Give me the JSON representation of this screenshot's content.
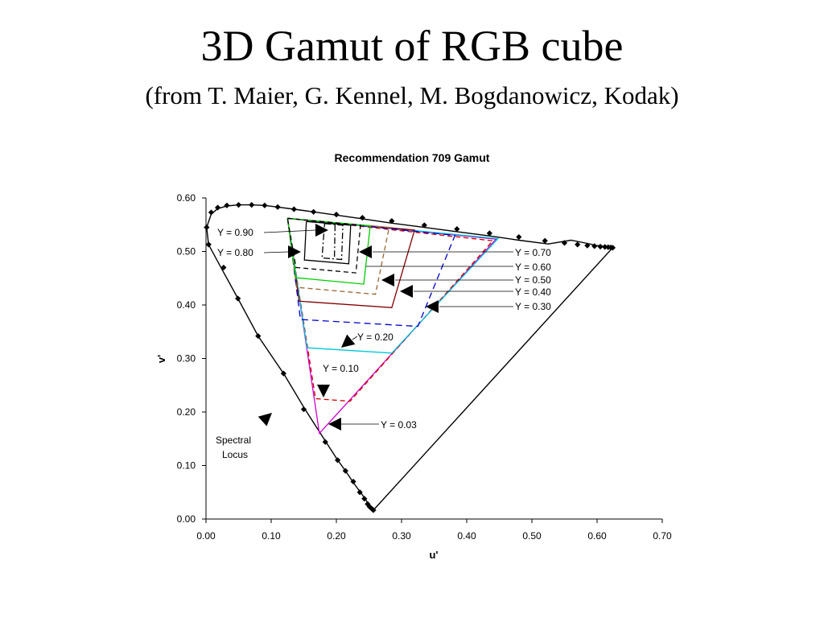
{
  "slide": {
    "title": "3D Gamut of RGB cube",
    "subtitle": "(from T. Maier, G. Kennel, M. Bogdanowicz, Kodak)"
  },
  "chart_data": {
    "type": "line",
    "title": "Recommendation 709 Gamut",
    "xlabel": "u'",
    "ylabel": "v'",
    "xlim": [
      0,
      0.7
    ],
    "ylim": [
      0,
      0.6
    ],
    "x_ticks": [
      0,
      0.1,
      0.2,
      0.3,
      0.4,
      0.5,
      0.6,
      0.7
    ],
    "y_ticks": [
      0,
      0.1,
      0.2,
      0.3,
      0.4,
      0.5,
      0.6
    ],
    "x_tick_labels": [
      "0.00",
      "0.10",
      "0.20",
      "0.30",
      "0.40",
      "0.50",
      "0.60",
      "0.70"
    ],
    "y_tick_labels": [
      "0.00",
      "0.10",
      "0.20",
      "0.30",
      "0.40",
      "0.50",
      "0.60"
    ],
    "grid": false,
    "legend": "none",
    "series": [
      {
        "label_key": "spectral",
        "color": "#000000",
        "dash": "solid",
        "markers": true,
        "closed": true,
        "points": [
          [
            0.2568,
            0.0165
          ],
          [
            0.2555,
            0.0175
          ],
          [
            0.253,
            0.02
          ],
          [
            0.25,
            0.026
          ],
          [
            0.2455,
            0.035
          ],
          [
            0.24,
            0.045
          ],
          [
            0.232,
            0.058
          ],
          [
            0.224,
            0.072
          ],
          [
            0.214,
            0.09
          ],
          [
            0.201,
            0.112
          ],
          [
            0.182,
            0.148
          ],
          [
            0.152,
            0.205
          ],
          [
            0.12,
            0.27
          ],
          [
            0.08,
            0.342
          ],
          [
            0.049,
            0.412
          ],
          [
            0.023,
            0.47
          ],
          [
            0.004,
            0.513
          ],
          [
            0.001,
            0.545
          ],
          [
            0.008,
            0.57
          ],
          [
            0.018,
            0.58
          ],
          [
            0.032,
            0.585
          ],
          [
            0.05,
            0.587
          ],
          [
            0.07,
            0.587
          ],
          [
            0.09,
            0.586
          ],
          [
            0.11,
            0.583
          ],
          [
            0.135,
            0.579
          ],
          [
            0.165,
            0.574
          ],
          [
            0.2,
            0.568
          ],
          [
            0.24,
            0.561
          ],
          [
            0.285,
            0.553
          ],
          [
            0.335,
            0.545
          ],
          [
            0.385,
            0.537
          ],
          [
            0.435,
            0.529
          ],
          [
            0.48,
            0.521
          ],
          [
            0.525,
            0.514
          ],
          [
            0.56,
            0.521
          ],
          [
            0.585,
            0.515
          ],
          [
            0.6,
            0.511
          ],
          [
            0.608,
            0.51
          ],
          [
            0.613,
            0.509
          ],
          [
            0.618,
            0.508
          ],
          [
            0.622,
            0.5075
          ],
          [
            0.624,
            0.507
          ]
        ],
        "marker_points": [
          [
            0.2568,
            0.0165
          ],
          [
            0.254,
            0.0195
          ],
          [
            0.251,
            0.023
          ],
          [
            0.248,
            0.028
          ],
          [
            0.243,
            0.038
          ],
          [
            0.236,
            0.05
          ],
          [
            0.226,
            0.07
          ],
          [
            0.214,
            0.09
          ],
          [
            0.202,
            0.11
          ],
          [
            0.183,
            0.144
          ],
          [
            0.15,
            0.205
          ],
          [
            0.119,
            0.272
          ],
          [
            0.08,
            0.342
          ],
          [
            0.049,
            0.412
          ],
          [
            0.027,
            0.47
          ],
          [
            0.004,
            0.513
          ],
          [
            0.001,
            0.545
          ],
          [
            0.008,
            0.573
          ],
          [
            0.018,
            0.582
          ],
          [
            0.032,
            0.586
          ],
          [
            0.05,
            0.587
          ],
          [
            0.07,
            0.587
          ],
          [
            0.09,
            0.586
          ],
          [
            0.11,
            0.583
          ],
          [
            0.135,
            0.579
          ],
          [
            0.165,
            0.574
          ],
          [
            0.2,
            0.569
          ],
          [
            0.24,
            0.563
          ],
          [
            0.285,
            0.557
          ],
          [
            0.335,
            0.549
          ],
          [
            0.385,
            0.542
          ],
          [
            0.435,
            0.534
          ],
          [
            0.48,
            0.527
          ],
          [
            0.52,
            0.52
          ],
          [
            0.55,
            0.516
          ],
          [
            0.57,
            0.513
          ],
          [
            0.585,
            0.511
          ],
          [
            0.596,
            0.51
          ],
          [
            0.605,
            0.509
          ],
          [
            0.612,
            0.5085
          ],
          [
            0.617,
            0.508
          ],
          [
            0.621,
            0.5075
          ],
          [
            0.624,
            0.507
          ]
        ]
      },
      {
        "label_key": "y003",
        "color": "#cc00cc",
        "dash": "solid",
        "points": [
          [
            0.125,
            0.562
          ],
          [
            0.445,
            0.523
          ],
          [
            0.174,
            0.16
          ],
          [
            0.125,
            0.562
          ]
        ]
      },
      {
        "label_key": "y010",
        "color": "#cc0000",
        "dash": "6 4",
        "points": [
          [
            0.125,
            0.562
          ],
          [
            0.44,
            0.52
          ],
          [
            0.221,
            0.22
          ],
          [
            0.168,
            0.225
          ],
          [
            0.125,
            0.562
          ]
        ]
      },
      {
        "label_key": "y020",
        "color": "#00c8d8",
        "dash": "solid",
        "points": [
          [
            0.125,
            0.562
          ],
          [
            0.448,
            0.524
          ],
          [
            0.285,
            0.31
          ],
          [
            0.155,
            0.32
          ],
          [
            0.125,
            0.562
          ]
        ]
      },
      {
        "label_key": "y030",
        "color": "#0000cc",
        "dash": "8 5",
        "points": [
          [
            0.125,
            0.562
          ],
          [
            0.382,
            0.53
          ],
          [
            0.325,
            0.36
          ],
          [
            0.145,
            0.373
          ],
          [
            0.125,
            0.562
          ]
        ]
      },
      {
        "label_key": "y040",
        "color": "#800000",
        "dash": "solid",
        "points": [
          [
            0.125,
            0.562
          ],
          [
            0.32,
            0.54
          ],
          [
            0.285,
            0.395
          ],
          [
            0.143,
            0.407
          ],
          [
            0.125,
            0.562
          ]
        ]
      },
      {
        "label_key": "y050",
        "color": "#996633",
        "dash": "6 4",
        "points": [
          [
            0.125,
            0.562
          ],
          [
            0.281,
            0.545
          ],
          [
            0.26,
            0.42
          ],
          [
            0.139,
            0.433
          ],
          [
            0.125,
            0.562
          ]
        ]
      },
      {
        "label_key": "y060",
        "color": "#00cc00",
        "dash": "solid",
        "points": [
          [
            0.125,
            0.562
          ],
          [
            0.252,
            0.548
          ],
          [
            0.242,
            0.439
          ],
          [
            0.138,
            0.451
          ],
          [
            0.125,
            0.562
          ]
        ]
      },
      {
        "label_key": "y070",
        "color": "#000000",
        "dash": "6 4",
        "points": [
          [
            0.125,
            0.562
          ],
          [
            0.237,
            0.549
          ],
          [
            0.23,
            0.46
          ],
          [
            0.138,
            0.47
          ],
          [
            0.125,
            0.562
          ]
        ]
      },
      {
        "label_key": "y080",
        "color": "#000000",
        "dash": "solid",
        "points": [
          [
            0.154,
            0.556
          ],
          [
            0.222,
            0.549
          ],
          [
            0.219,
            0.477
          ],
          [
            0.151,
            0.484
          ],
          [
            0.154,
            0.556
          ]
        ]
      },
      {
        "label_key": "y090a",
        "color": "#000000",
        "dash": "8 3 2 3",
        "points": [
          [
            0.182,
            0.552
          ],
          [
            0.21,
            0.549
          ],
          [
            0.208,
            0.485
          ],
          [
            0.178,
            0.488
          ],
          [
            0.182,
            0.552
          ]
        ]
      },
      {
        "label_key": "y090b",
        "color": "#000000",
        "dash": "8 3 2 3",
        "points": [
          [
            0.198,
            0.55
          ],
          [
            0.197,
            0.487
          ]
        ]
      }
    ],
    "annotations": [
      {
        "key": "y090",
        "text": "Y = 0.90"
      },
      {
        "key": "y080",
        "text": "Y = 0.80"
      },
      {
        "key": "y070",
        "text": "Y = 0.70"
      },
      {
        "key": "y060",
        "text": "Y = 0.60"
      },
      {
        "key": "y050",
        "text": "Y = 0.50"
      },
      {
        "key": "y040",
        "text": "Y = 0.40"
      },
      {
        "key": "y030",
        "text": "Y = 0.30"
      },
      {
        "key": "y020",
        "text": "Y = 0.20"
      },
      {
        "key": "y010",
        "text": "Y = 0.10"
      },
      {
        "key": "y003",
        "text": "Y = 0.03"
      },
      {
        "key": "spectral1",
        "text": "Spectral"
      },
      {
        "key": "spectral2",
        "text": "Locus"
      }
    ]
  }
}
